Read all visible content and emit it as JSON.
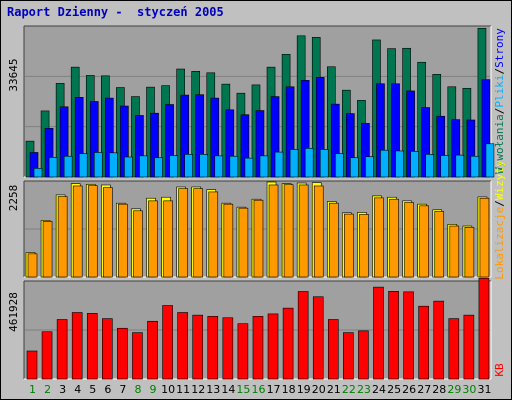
{
  "title": "Raport Dzienny -  styczeń 2005",
  "colors": {
    "background": "#c0c0c0",
    "panel": "#a0a0a0",
    "grid": "#808080",
    "title": "#0000c0",
    "day_weekday": "#000000",
    "day_weekend": "#008000",
    "visits": "#007650",
    "pages": "#0000ff",
    "files": "#00b0ff",
    "sites": "#ffff00",
    "hits": "#ff9900",
    "kb": "#ff0000"
  },
  "chart_data": [
    {
      "type": "bar",
      "panel": "top",
      "x": [
        "1",
        "2",
        "3",
        "4",
        "5",
        "6",
        "7",
        "8",
        "9",
        "10",
        "11",
        "12",
        "13",
        "14",
        "15",
        "16",
        "17",
        "18",
        "19",
        "20",
        "21",
        "22",
        "23",
        "24",
        "25",
        "26",
        "27",
        "28",
        "29",
        "30",
        "31"
      ],
      "weekend_days": [
        "1",
        "2",
        "8",
        "9",
        "15",
        "16",
        "22",
        "23",
        "29",
        "30"
      ],
      "ytick": "33645",
      "ylim": [
        0,
        40000
      ],
      "legend": [
        "Wywołania",
        "/",
        "Pliki",
        "/",
        "Strony"
      ],
      "series": [
        {
          "name": "Wywołania",
          "color": "#007650",
          "values": [
            9500,
            17500,
            24800,
            29100,
            26900,
            26800,
            23700,
            21300,
            23800,
            24200,
            28600,
            28000,
            27600,
            24600,
            22200,
            24400,
            29100,
            32500,
            37400,
            37000,
            29200,
            23000,
            20300,
            36300,
            34000,
            34100,
            30400,
            27200,
            23900,
            23500,
            39400
          ]
        },
        {
          "name": "Pliki",
          "color": "#0000ff",
          "values": [
            6500,
            12900,
            18600,
            21100,
            20000,
            20900,
            18800,
            16300,
            16900,
            19200,
            21700,
            21800,
            20900,
            17800,
            16500,
            17600,
            21300,
            23900,
            25600,
            26400,
            19300,
            16800,
            14200,
            24700,
            24700,
            22800,
            18400,
            16100,
            15200,
            15100,
            25800
          ]
        },
        {
          "name": "Strony",
          "color": "#00b0ff",
          "values": [
            2300,
            5200,
            5500,
            6200,
            6500,
            6400,
            5300,
            5600,
            5100,
            5700,
            6000,
            6000,
            5600,
            5500,
            5000,
            5600,
            6600,
            7300,
            7600,
            7300,
            6200,
            5100,
            5400,
            7100,
            6900,
            6800,
            6000,
            5700,
            5800,
            5500,
            8800
          ]
        }
      ]
    },
    {
      "type": "bar",
      "panel": "middle",
      "x": [
        "1",
        "2",
        "3",
        "4",
        "5",
        "6",
        "7",
        "8",
        "9",
        "10",
        "11",
        "12",
        "13",
        "14",
        "15",
        "16",
        "17",
        "18",
        "19",
        "20",
        "21",
        "22",
        "23",
        "24",
        "25",
        "26",
        "27",
        "28",
        "29",
        "30",
        "31"
      ],
      "ytick": "2258",
      "ylim": [
        0,
        2900
      ],
      "legend": [
        "Lokalizacje",
        "/",
        "Wizyty"
      ],
      "series": [
        {
          "name": "Wizyty",
          "color": "#ffff00",
          "values": [
            740,
            1710,
            2480,
            2820,
            2800,
            2780,
            2230,
            2060,
            2380,
            2410,
            2720,
            2720,
            2640,
            2230,
            2110,
            2350,
            2870,
            2820,
            2840,
            2850,
            2280,
            1940,
            1950,
            2450,
            2410,
            2300,
            2200,
            2030,
            1590,
            1540,
            2420
          ]
        },
        {
          "name": "Lokalizacje",
          "color": "#ff9900",
          "values": [
            700,
            1680,
            2430,
            2750,
            2760,
            2700,
            2200,
            2000,
            2300,
            2300,
            2670,
            2670,
            2570,
            2200,
            2080,
            2320,
            2780,
            2790,
            2780,
            2750,
            2230,
            1900,
            1890,
            2390,
            2350,
            2250,
            2150,
            1980,
            1540,
            1500,
            2380
          ]
        }
      ]
    },
    {
      "type": "bar",
      "panel": "bottom",
      "x": [
        "1",
        "2",
        "3",
        "4",
        "5",
        "6",
        "7",
        "8",
        "9",
        "10",
        "11",
        "12",
        "13",
        "14",
        "15",
        "16",
        "17",
        "18",
        "19",
        "20",
        "21",
        "22",
        "23",
        "24",
        "25",
        "26",
        "27",
        "28",
        "29",
        "30",
        "31"
      ],
      "ytick": "461928",
      "ylim": [
        0,
        560000
      ],
      "legend": [
        "KB"
      ],
      "series": [
        {
          "name": "KB",
          "color": "#ff0000",
          "values": [
            160000,
            270000,
            340000,
            380000,
            375000,
            345000,
            290000,
            265000,
            330000,
            420000,
            380000,
            365000,
            358000,
            350000,
            316000,
            358000,
            372000,
            405000,
            500000,
            470000,
            340000,
            265000,
            275000,
            525000,
            501000,
            498000,
            416000,
            445000,
            345000,
            365000,
            575000
          ]
        }
      ]
    }
  ]
}
